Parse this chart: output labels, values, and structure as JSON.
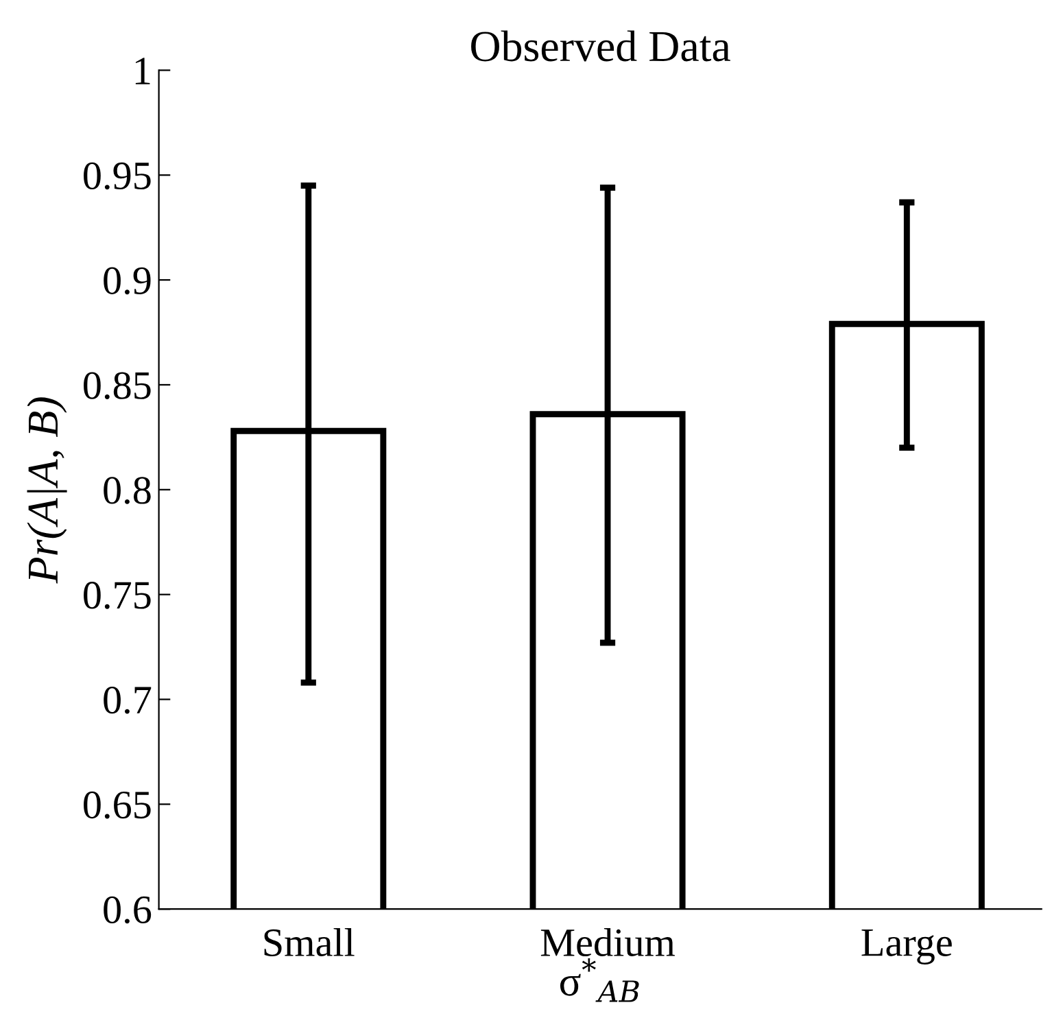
{
  "chart_data": {
    "type": "bar",
    "title": "Observed Data",
    "xlabel": "σ$^{*}$$_{AB}$",
    "ylabel": "Pr(A|A, B)",
    "categories": [
      "Small",
      "Medium",
      "Large"
    ],
    "values": [
      0.828,
      0.836,
      0.879
    ],
    "errors": [
      [
        0.708,
        0.945
      ],
      [
        0.727,
        0.944
      ],
      [
        0.82,
        0.937
      ]
    ],
    "color": "#ffffff",
    "ylim": [
      0.6,
      1
    ],
    "yticks": [
      0.6,
      0.65,
      0.7,
      0.75,
      0.8,
      0.85,
      0.9,
      0.95,
      1
    ],
    "grid": false,
    "legend": false
  }
}
